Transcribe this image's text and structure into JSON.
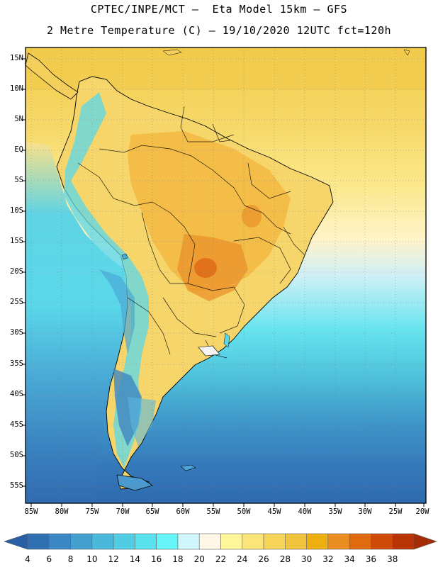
{
  "header": {
    "title_line1": "CPTEC/INPE/MCT –  Eta Model 15km – GFS",
    "title_line2": "2 Metre Temperature (C) – 19/10/2020 12UTC fct=120h"
  },
  "axes": {
    "lat_labels": [
      "15N",
      "10N",
      "5N",
      "EQ",
      "5S",
      "10S",
      "15S",
      "20S",
      "25S",
      "30S",
      "35S",
      "40S",
      "45S",
      "50S",
      "55S"
    ],
    "lon_labels": [
      "85W",
      "80W",
      "75W",
      "70W",
      "65W",
      "60W",
      "55W",
      "50W",
      "45W",
      "40W",
      "35W",
      "30W",
      "25W",
      "20W"
    ]
  },
  "colorbar": {
    "labels": [
      "4",
      "6",
      "8",
      "10",
      "12",
      "14",
      "16",
      "18",
      "20",
      "22",
      "24",
      "26",
      "28",
      "30",
      "32",
      "34",
      "36",
      "38"
    ],
    "colors": [
      "#2f6fb0",
      "#3b86c4",
      "#45a0cf",
      "#4ab8d8",
      "#50cde2",
      "#5ae2ec",
      "#66f5f8",
      "#cff6fb",
      "#fff8e6",
      "#fff59a",
      "#fbe57a",
      "#f6d45a",
      "#f0c43c",
      "#eeb010",
      "#e98f22",
      "#df6a10",
      "#cf4a08",
      "#b93406"
    ]
  },
  "chart_data": {
    "type": "heatmap",
    "title": "2 Metre Temperature (C)",
    "model": "Eta Model 15km – GFS",
    "date": "19/10/2020 12UTC",
    "forecast": "fct=120h",
    "lon_range": [
      -86,
      -20
    ],
    "lat_range": [
      17,
      -58
    ],
    "units": "C",
    "levels": [
      4,
      6,
      8,
      10,
      12,
      14,
      16,
      18,
      20,
      22,
      24,
      26,
      28,
      30,
      32,
      34,
      36,
      38
    ]
  }
}
